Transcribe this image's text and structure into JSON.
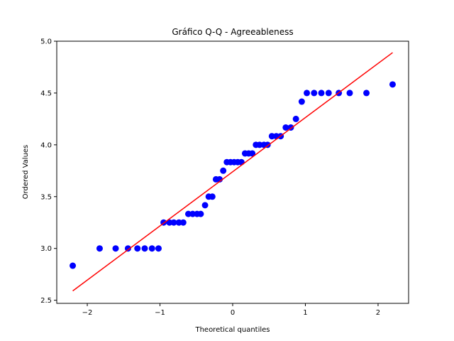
{
  "chart_data": {
    "type": "scatter",
    "title": "Gráfico Q-Q - Agreeableness",
    "xlabel": "Theoretical quantiles",
    "ylabel": "Ordered Values",
    "xlim": [
      -2.42,
      2.42
    ],
    "ylim": [
      2.47,
      5.0
    ],
    "xticks": [
      -2,
      -1,
      0,
      1,
      2
    ],
    "xtick_labels": [
      "−2",
      "−1",
      "0",
      "1",
      "2"
    ],
    "yticks": [
      2.5,
      3.0,
      3.5,
      4.0,
      4.5,
      5.0
    ],
    "ytick_labels": [
      "2.5",
      "3.0",
      "3.5",
      "4.0",
      "4.5",
      "5.0"
    ],
    "grid": false,
    "series": [
      {
        "kind": "points",
        "color": "#0000ff",
        "x": [
          -2.2,
          -1.83,
          -1.61,
          -1.44,
          -1.31,
          -1.21,
          -1.11,
          -1.02,
          -0.95,
          -0.87,
          -0.81,
          -0.74,
          -0.68,
          -0.61,
          -0.55,
          -0.49,
          -0.44,
          -0.38,
          -0.33,
          -0.28,
          -0.23,
          -0.18,
          -0.13,
          -0.08,
          -0.03,
          0.02,
          0.07,
          0.12,
          0.17,
          0.22,
          0.27,
          0.32,
          0.37,
          0.43,
          0.48,
          0.54,
          0.6,
          0.66,
          0.73,
          0.8,
          0.87,
          0.95,
          1.02,
          1.12,
          1.22,
          1.32,
          1.46,
          1.61,
          1.84,
          2.2
        ],
        "y": [
          2.833,
          3.0,
          3.0,
          3.0,
          3.0,
          3.0,
          3.0,
          3.0,
          3.25,
          3.25,
          3.25,
          3.25,
          3.25,
          3.333,
          3.333,
          3.333,
          3.333,
          3.417,
          3.5,
          3.5,
          3.667,
          3.667,
          3.75,
          3.833,
          3.833,
          3.833,
          3.833,
          3.833,
          3.917,
          3.917,
          3.917,
          4.0,
          4.0,
          4.0,
          4.0,
          4.083,
          4.083,
          4.083,
          4.167,
          4.167,
          4.25,
          4.417,
          4.5,
          4.5,
          4.5,
          4.5,
          4.5,
          4.5,
          4.5,
          4.583
        ]
      },
      {
        "kind": "fit_line",
        "color": "#ff0000",
        "x": [
          -2.2,
          2.2
        ],
        "y": [
          2.59,
          4.89
        ]
      }
    ]
  }
}
